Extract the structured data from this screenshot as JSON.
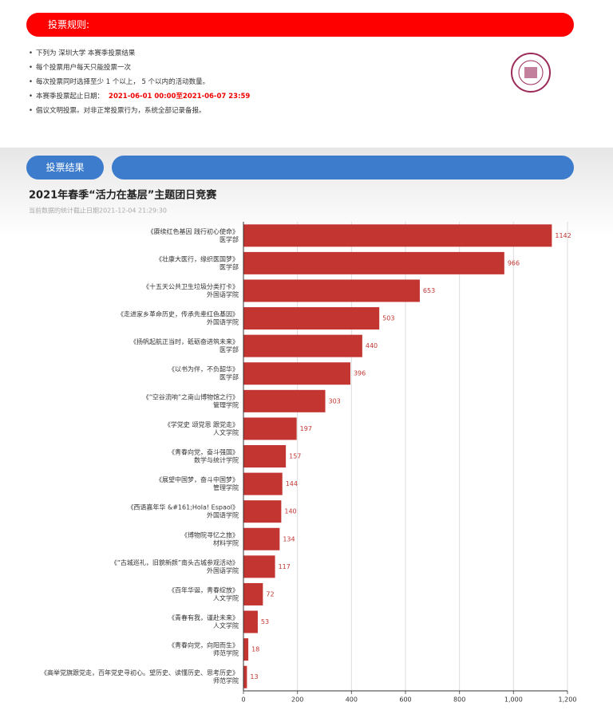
{
  "header": {
    "title": "投票规则:"
  },
  "rules": [
    "下列为 深圳大学 本赛季投票结果",
    "每个投票用户每天只能投票一次",
    "每次投票同时选择至少 1 个以上， 5 个以内的活动数量。",
    "本赛季投票起止日期：",
    "倡议文明投票。对非正常投票行为，系统全部记录备报。"
  ],
  "rule_dates": "2021-06-01 00:00至2021-06-07 23:59",
  "tabs": {
    "active": "投票结果"
  },
  "chart_data": {
    "type": "hbar",
    "title": "2021年春季“活力在基层”主题团日竞赛",
    "subtitle": "当前数据的统计截止日期2021-12-04 21:29:30",
    "categories": [
      "《赓续红色基因 践行初心使命》",
      "《壮康大医行，缘织医国梦》",
      "《十五天公共卫生垃圾分类打卡》",
      "《走进家乡革命历史，传承先辈红色基因》",
      "《扬帆起航正当时，砥砺奋进筑未来》",
      "《以书为伴，不负韶华》",
      "《“空谷流响”之南山博物馆之行》",
      "《学党史 颂党恩 跟党走》",
      "《青春向党，奋斗强国》",
      "《展望中国梦，奋斗中国梦》",
      "《西语嘉年华 &#161;Hola! Espaol》",
      "《博物院寻忆之旅》",
      "《“古城巡礼，旧貌新颜”南头古城参观活动》",
      "《百年华诞，青春绽放》",
      "《青春有我，谨赴未来》",
      "《青春向党，向阳而生》",
      "《高举党旗跟党走，百年党史寻初心。望历史、读懂历史、思考历史》"
    ],
    "departments": [
      "医学部",
      "医学部",
      "外国语学院",
      "外国语学院",
      "医学部",
      "医学部",
      "管理学院",
      "人文学院",
      "数学与统计学院",
      "管理学院",
      "外国语学院",
      "材料学院",
      "外国语学院",
      "人文学院",
      "人文学院",
      "师范学院",
      "师范学院"
    ],
    "values": [
      1142,
      966,
      653,
      503,
      440,
      396,
      303,
      197,
      157,
      144,
      140,
      134,
      117,
      72,
      53,
      18,
      13
    ],
    "color": "#c23531",
    "xlim": [
      0,
      1200
    ],
    "xticks": [
      0,
      200,
      400,
      600,
      800,
      {
        "value": 1000,
        "label": "1,000"
      },
      {
        "value": 1200,
        "label": "1,200"
      }
    ],
    "grid": true
  }
}
